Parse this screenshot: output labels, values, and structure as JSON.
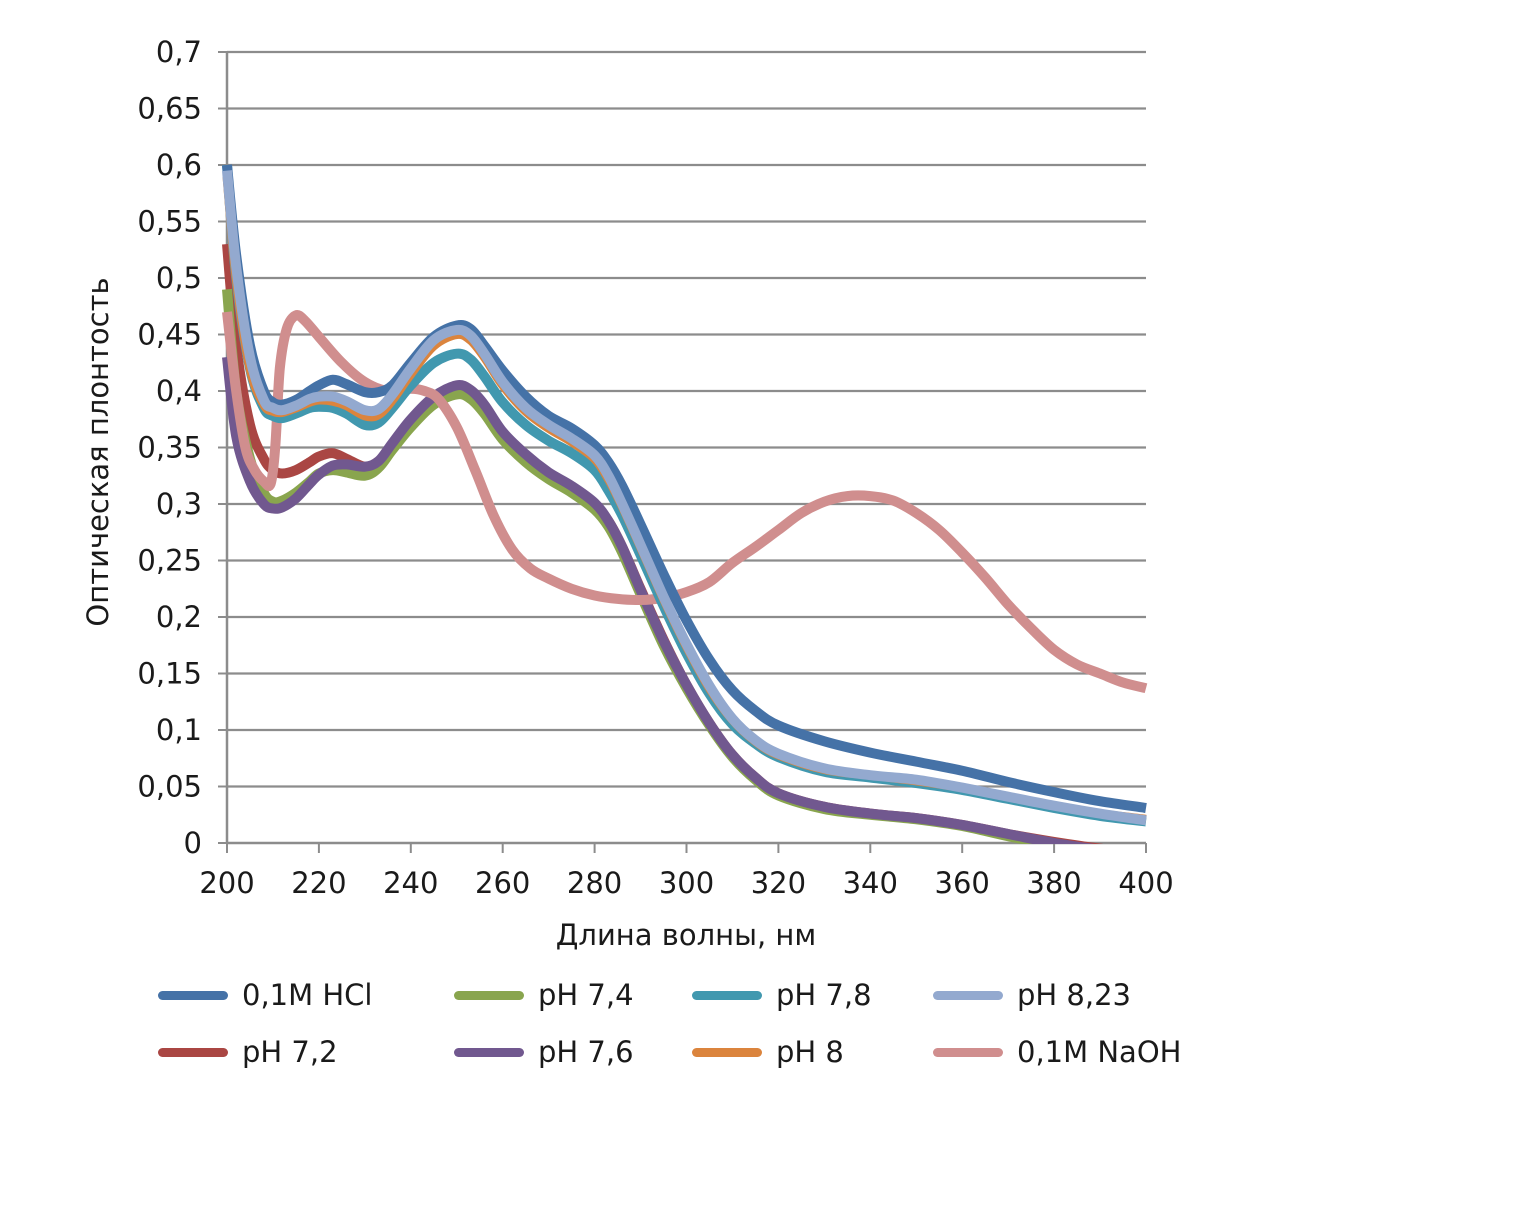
{
  "chart_data": {
    "type": "line",
    "title": "",
    "xlabel": "Длина волны, нм",
    "ylabel": "Оптическая плонтость",
    "xlim": [
      200,
      400
    ],
    "ylim": [
      0,
      0.7
    ],
    "grid": "horizontal",
    "legend_position": "bottom",
    "x_ticks": [
      "200",
      "220",
      "240",
      "260",
      "280",
      "300",
      "320",
      "340",
      "360",
      "380",
      "400"
    ],
    "x_tick_values": [
      200,
      220,
      240,
      260,
      280,
      300,
      320,
      340,
      360,
      380,
      400
    ],
    "y_ticks": [
      "0",
      "0,05",
      "0,1",
      "0,15",
      "0,2",
      "0,25",
      "0,3",
      "0,35",
      "0,4",
      "0,45",
      "0,5",
      "0,55",
      "0,6",
      "0,65",
      "0,7"
    ],
    "y_tick_values": [
      0,
      0.05,
      0.1,
      0.15,
      0.2,
      0.25,
      0.3,
      0.35,
      0.4,
      0.45,
      0.5,
      0.55,
      0.6,
      0.65,
      0.7
    ],
    "x": [
      200,
      202,
      205,
      208,
      210,
      212,
      215,
      218,
      220,
      223,
      226,
      230,
      233,
      236,
      240,
      245,
      250,
      253,
      256,
      260,
      265,
      270,
      275,
      280,
      283,
      286,
      290,
      295,
      300,
      305,
      310,
      315,
      320,
      330,
      340,
      350,
      360,
      370,
      380,
      390,
      400
    ],
    "series": [
      {
        "name": "0,1M HCl",
        "color": "#4572A7",
        "values": [
          0.6,
          0.52,
          0.44,
          0.4,
          0.39,
          0.388,
          0.392,
          0.4,
          0.405,
          0.41,
          0.406,
          0.399,
          0.399,
          0.405,
          0.425,
          0.448,
          0.458,
          0.455,
          0.44,
          0.418,
          0.395,
          0.378,
          0.367,
          0.352,
          0.337,
          0.316,
          0.282,
          0.238,
          0.197,
          0.162,
          0.135,
          0.117,
          0.104,
          0.09,
          0.08,
          0.072,
          0.064,
          0.054,
          0.045,
          0.037,
          0.031
        ]
      },
      {
        "name": "pH 7,2",
        "color": "#AA4643",
        "values": [
          0.53,
          0.44,
          0.37,
          0.34,
          0.33,
          0.327,
          0.33,
          0.337,
          0.342,
          0.345,
          0.34,
          0.333,
          0.338,
          0.352,
          0.372,
          0.392,
          0.402,
          0.398,
          0.385,
          0.363,
          0.342,
          0.327,
          0.315,
          0.3,
          0.285,
          0.262,
          0.225,
          0.18,
          0.14,
          0.106,
          0.078,
          0.058,
          0.044,
          0.032,
          0.026,
          0.022,
          0.016,
          0.008,
          0.001,
          -0.005,
          -0.01
        ]
      },
      {
        "name": "pH 7,4",
        "color": "#89A54E",
        "values": [
          0.49,
          0.4,
          0.34,
          0.31,
          0.302,
          0.303,
          0.31,
          0.32,
          0.327,
          0.33,
          0.328,
          0.325,
          0.332,
          0.348,
          0.368,
          0.388,
          0.397,
          0.393,
          0.38,
          0.357,
          0.337,
          0.322,
          0.31,
          0.295,
          0.28,
          0.257,
          0.22,
          0.175,
          0.137,
          0.104,
          0.076,
          0.056,
          0.042,
          0.03,
          0.025,
          0.021,
          0.015,
          0.006,
          -0.002,
          -0.008,
          -0.012
        ]
      },
      {
        "name": "pH 7,6",
        "color": "#71588F",
        "values": [
          0.43,
          0.36,
          0.32,
          0.3,
          0.296,
          0.297,
          0.305,
          0.318,
          0.326,
          0.334,
          0.335,
          0.333,
          0.338,
          0.354,
          0.375,
          0.395,
          0.405,
          0.401,
          0.388,
          0.364,
          0.344,
          0.328,
          0.316,
          0.301,
          0.285,
          0.262,
          0.224,
          0.179,
          0.14,
          0.106,
          0.078,
          0.058,
          0.044,
          0.032,
          0.026,
          0.022,
          0.016,
          0.008,
          0.0,
          -0.006,
          -0.011
        ]
      },
      {
        "name": "pH 7,8",
        "color": "#4198AF",
        "values": [
          0.6,
          0.5,
          0.42,
          0.385,
          0.378,
          0.376,
          0.38,
          0.385,
          0.386,
          0.385,
          0.38,
          0.37,
          0.372,
          0.385,
          0.405,
          0.425,
          0.433,
          0.428,
          0.413,
          0.39,
          0.37,
          0.356,
          0.345,
          0.33,
          0.312,
          0.29,
          0.255,
          0.21,
          0.168,
          0.132,
          0.105,
          0.088,
          0.076,
          0.063,
          0.058,
          0.053,
          0.047,
          0.039,
          0.031,
          0.024,
          0.019
        ]
      },
      {
        "name": "pH 8",
        "color": "#DB843D",
        "values": [
          0.59,
          0.5,
          0.42,
          0.388,
          0.382,
          0.381,
          0.385,
          0.39,
          0.392,
          0.391,
          0.387,
          0.378,
          0.379,
          0.392,
          0.415,
          0.44,
          0.45,
          0.445,
          0.43,
          0.405,
          0.382,
          0.367,
          0.355,
          0.34,
          0.322,
          0.298,
          0.262,
          0.216,
          0.174,
          0.137,
          0.109,
          0.09,
          0.078,
          0.065,
          0.06,
          0.055,
          0.049,
          0.041,
          0.033,
          0.026,
          0.021
        ]
      },
      {
        "name": "pH 8,23",
        "color": "#93A9CF",
        "values": [
          0.595,
          0.51,
          0.43,
          0.392,
          0.385,
          0.383,
          0.387,
          0.393,
          0.395,
          0.395,
          0.391,
          0.383,
          0.384,
          0.397,
          0.42,
          0.445,
          0.454,
          0.449,
          0.433,
          0.408,
          0.385,
          0.37,
          0.358,
          0.343,
          0.325,
          0.3,
          0.264,
          0.218,
          0.176,
          0.139,
          0.11,
          0.091,
          0.079,
          0.066,
          0.06,
          0.056,
          0.049,
          0.041,
          0.033,
          0.026,
          0.02
        ]
      },
      {
        "name": "0,1M NaOH",
        "color": "#D08E8E",
        "x": [
          200,
          202,
          204,
          206,
          208,
          209.5,
          210.5,
          211.5,
          213,
          215,
          217,
          220,
          225,
          230,
          235,
          240,
          243,
          246,
          250,
          254,
          258,
          262,
          266,
          270,
          275,
          280,
          285,
          290,
          295,
          300,
          305,
          310,
          315,
          320,
          325,
          330,
          335,
          340,
          345,
          350,
          355,
          360,
          365,
          370,
          375,
          380,
          385,
          390,
          395,
          400
        ],
        "values": [
          0.47,
          0.4,
          0.35,
          0.33,
          0.32,
          0.318,
          0.35,
          0.42,
          0.455,
          0.467,
          0.462,
          0.448,
          0.425,
          0.408,
          0.4,
          0.402,
          0.4,
          0.393,
          0.368,
          0.33,
          0.29,
          0.26,
          0.243,
          0.234,
          0.225,
          0.219,
          0.216,
          0.215,
          0.217,
          0.222,
          0.231,
          0.248,
          0.262,
          0.277,
          0.292,
          0.302,
          0.307,
          0.307,
          0.303,
          0.292,
          0.277,
          0.257,
          0.235,
          0.211,
          0.19,
          0.171,
          0.158,
          0.15,
          0.142,
          0.137
        ]
      }
    ]
  }
}
